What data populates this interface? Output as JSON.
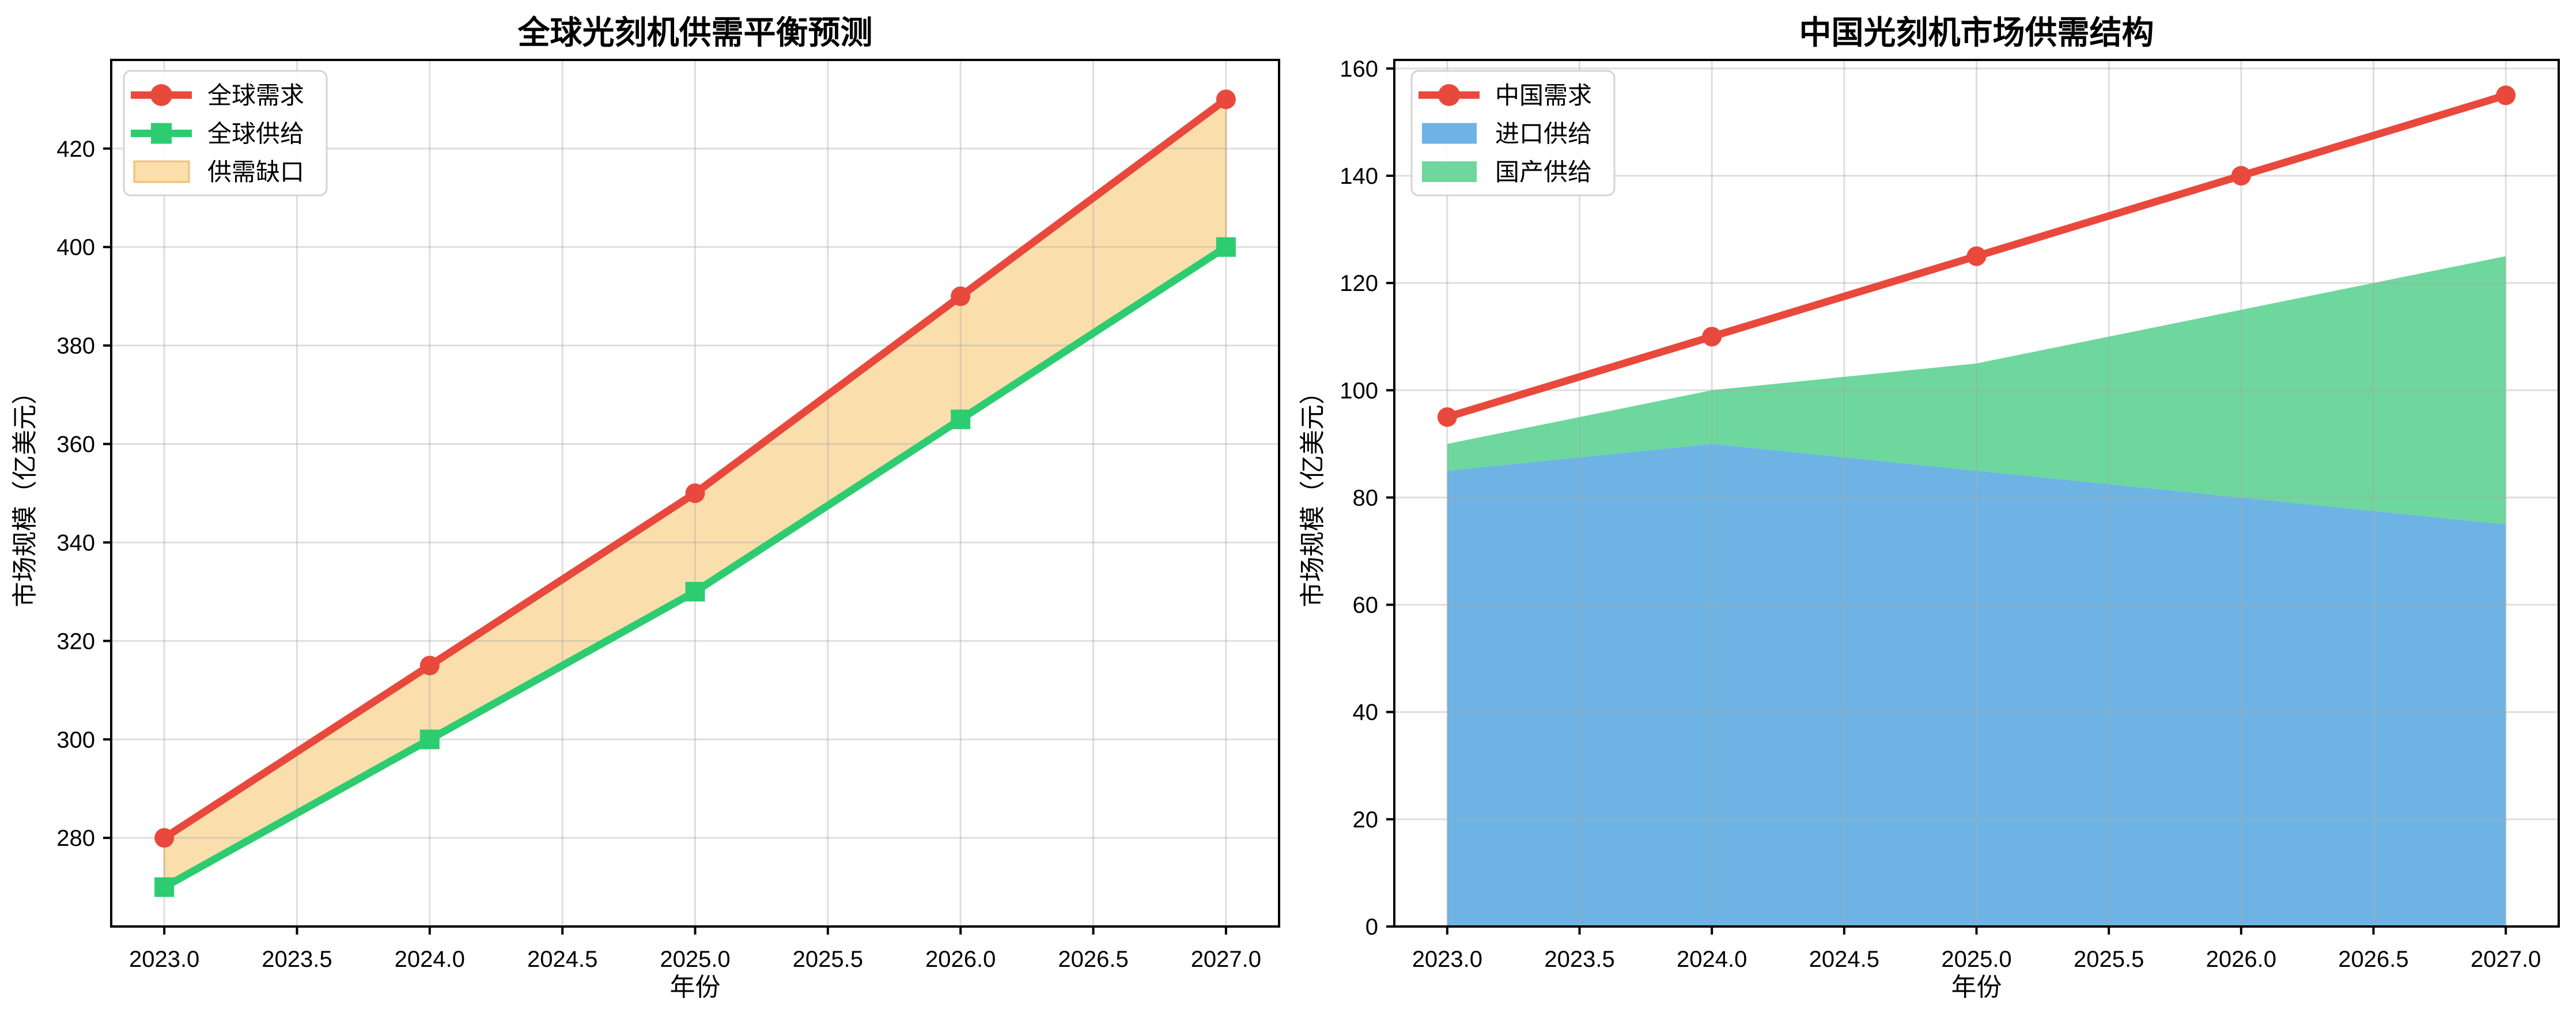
{
  "figure": {
    "background": "#ffffff"
  },
  "chart_data": [
    {
      "id": "global-balance",
      "type": "line",
      "title": "全球光刻机供需平衡预测",
      "xlabel": "年份",
      "ylabel": "市场规模（亿美元）",
      "x": [
        2023,
        2024,
        2025,
        2026,
        2027
      ],
      "xlim": [
        2022.8,
        2027.2
      ],
      "ylim": [
        262,
        438
      ],
      "grid": true,
      "legend_position": "upper-left",
      "xticks": {
        "values": [
          2023.0,
          2023.5,
          2024.0,
          2024.5,
          2025.0,
          2025.5,
          2026.0,
          2026.5,
          2027.0
        ],
        "labels": [
          "2023.0",
          "2023.5",
          "2024.0",
          "2024.5",
          "2025.0",
          "2025.5",
          "2026.0",
          "2026.5",
          "2027.0"
        ]
      },
      "yticks": [
        280,
        300,
        320,
        340,
        360,
        380,
        400,
        420
      ],
      "series": [
        {
          "id": "global-demand",
          "name": "全球需求",
          "type": "line",
          "marker": "circle",
          "color": "#e8493c",
          "values": [
            280,
            315,
            350,
            390,
            430
          ]
        },
        {
          "id": "global-supply",
          "name": "全球供给",
          "type": "line",
          "marker": "square",
          "color": "#2ecc71",
          "values": [
            270,
            300,
            330,
            365,
            400
          ]
        },
        {
          "id": "supply-gap",
          "name": "供需缺口",
          "type": "band",
          "between": [
            "全球需求",
            "全球供给"
          ],
          "fill": "#fadfad",
          "edge": "#f2bf72"
        }
      ]
    },
    {
      "id": "china-structure",
      "type": "line+stacked-area",
      "title": "中国光刻机市场供需结构",
      "xlabel": "年份",
      "ylabel": "市场规模（亿美元）",
      "x": [
        2023,
        2024,
        2025,
        2026,
        2027
      ],
      "xlim": [
        2022.8,
        2027.2
      ],
      "ylim": [
        0,
        161.6
      ],
      "grid": true,
      "legend_position": "upper-left",
      "xticks": {
        "values": [
          2023.0,
          2023.5,
          2024.0,
          2024.5,
          2025.0,
          2025.5,
          2026.0,
          2026.5,
          2027.0
        ],
        "labels": [
          "2023.0",
          "2023.5",
          "2024.0",
          "2024.5",
          "2025.0",
          "2025.5",
          "2026.0",
          "2026.5",
          "2027.0"
        ]
      },
      "yticks": [
        0,
        20,
        40,
        60,
        80,
        100,
        120,
        140,
        160
      ],
      "series": [
        {
          "id": "china-demand",
          "name": "中国需求",
          "type": "line",
          "marker": "circle",
          "color": "#e8493c",
          "values": [
            95,
            110,
            125,
            140,
            155
          ]
        },
        {
          "id": "import-supply",
          "name": "进口供给",
          "type": "stacked-area",
          "fill": "#6db4e4",
          "values": [
            85,
            90,
            85,
            80,
            75
          ]
        },
        {
          "id": "domestic-supply",
          "name": "国产供给",
          "type": "stacked-area",
          "fill": "#6dd79d",
          "values": [
            5,
            10,
            20,
            35,
            50
          ]
        }
      ]
    }
  ]
}
